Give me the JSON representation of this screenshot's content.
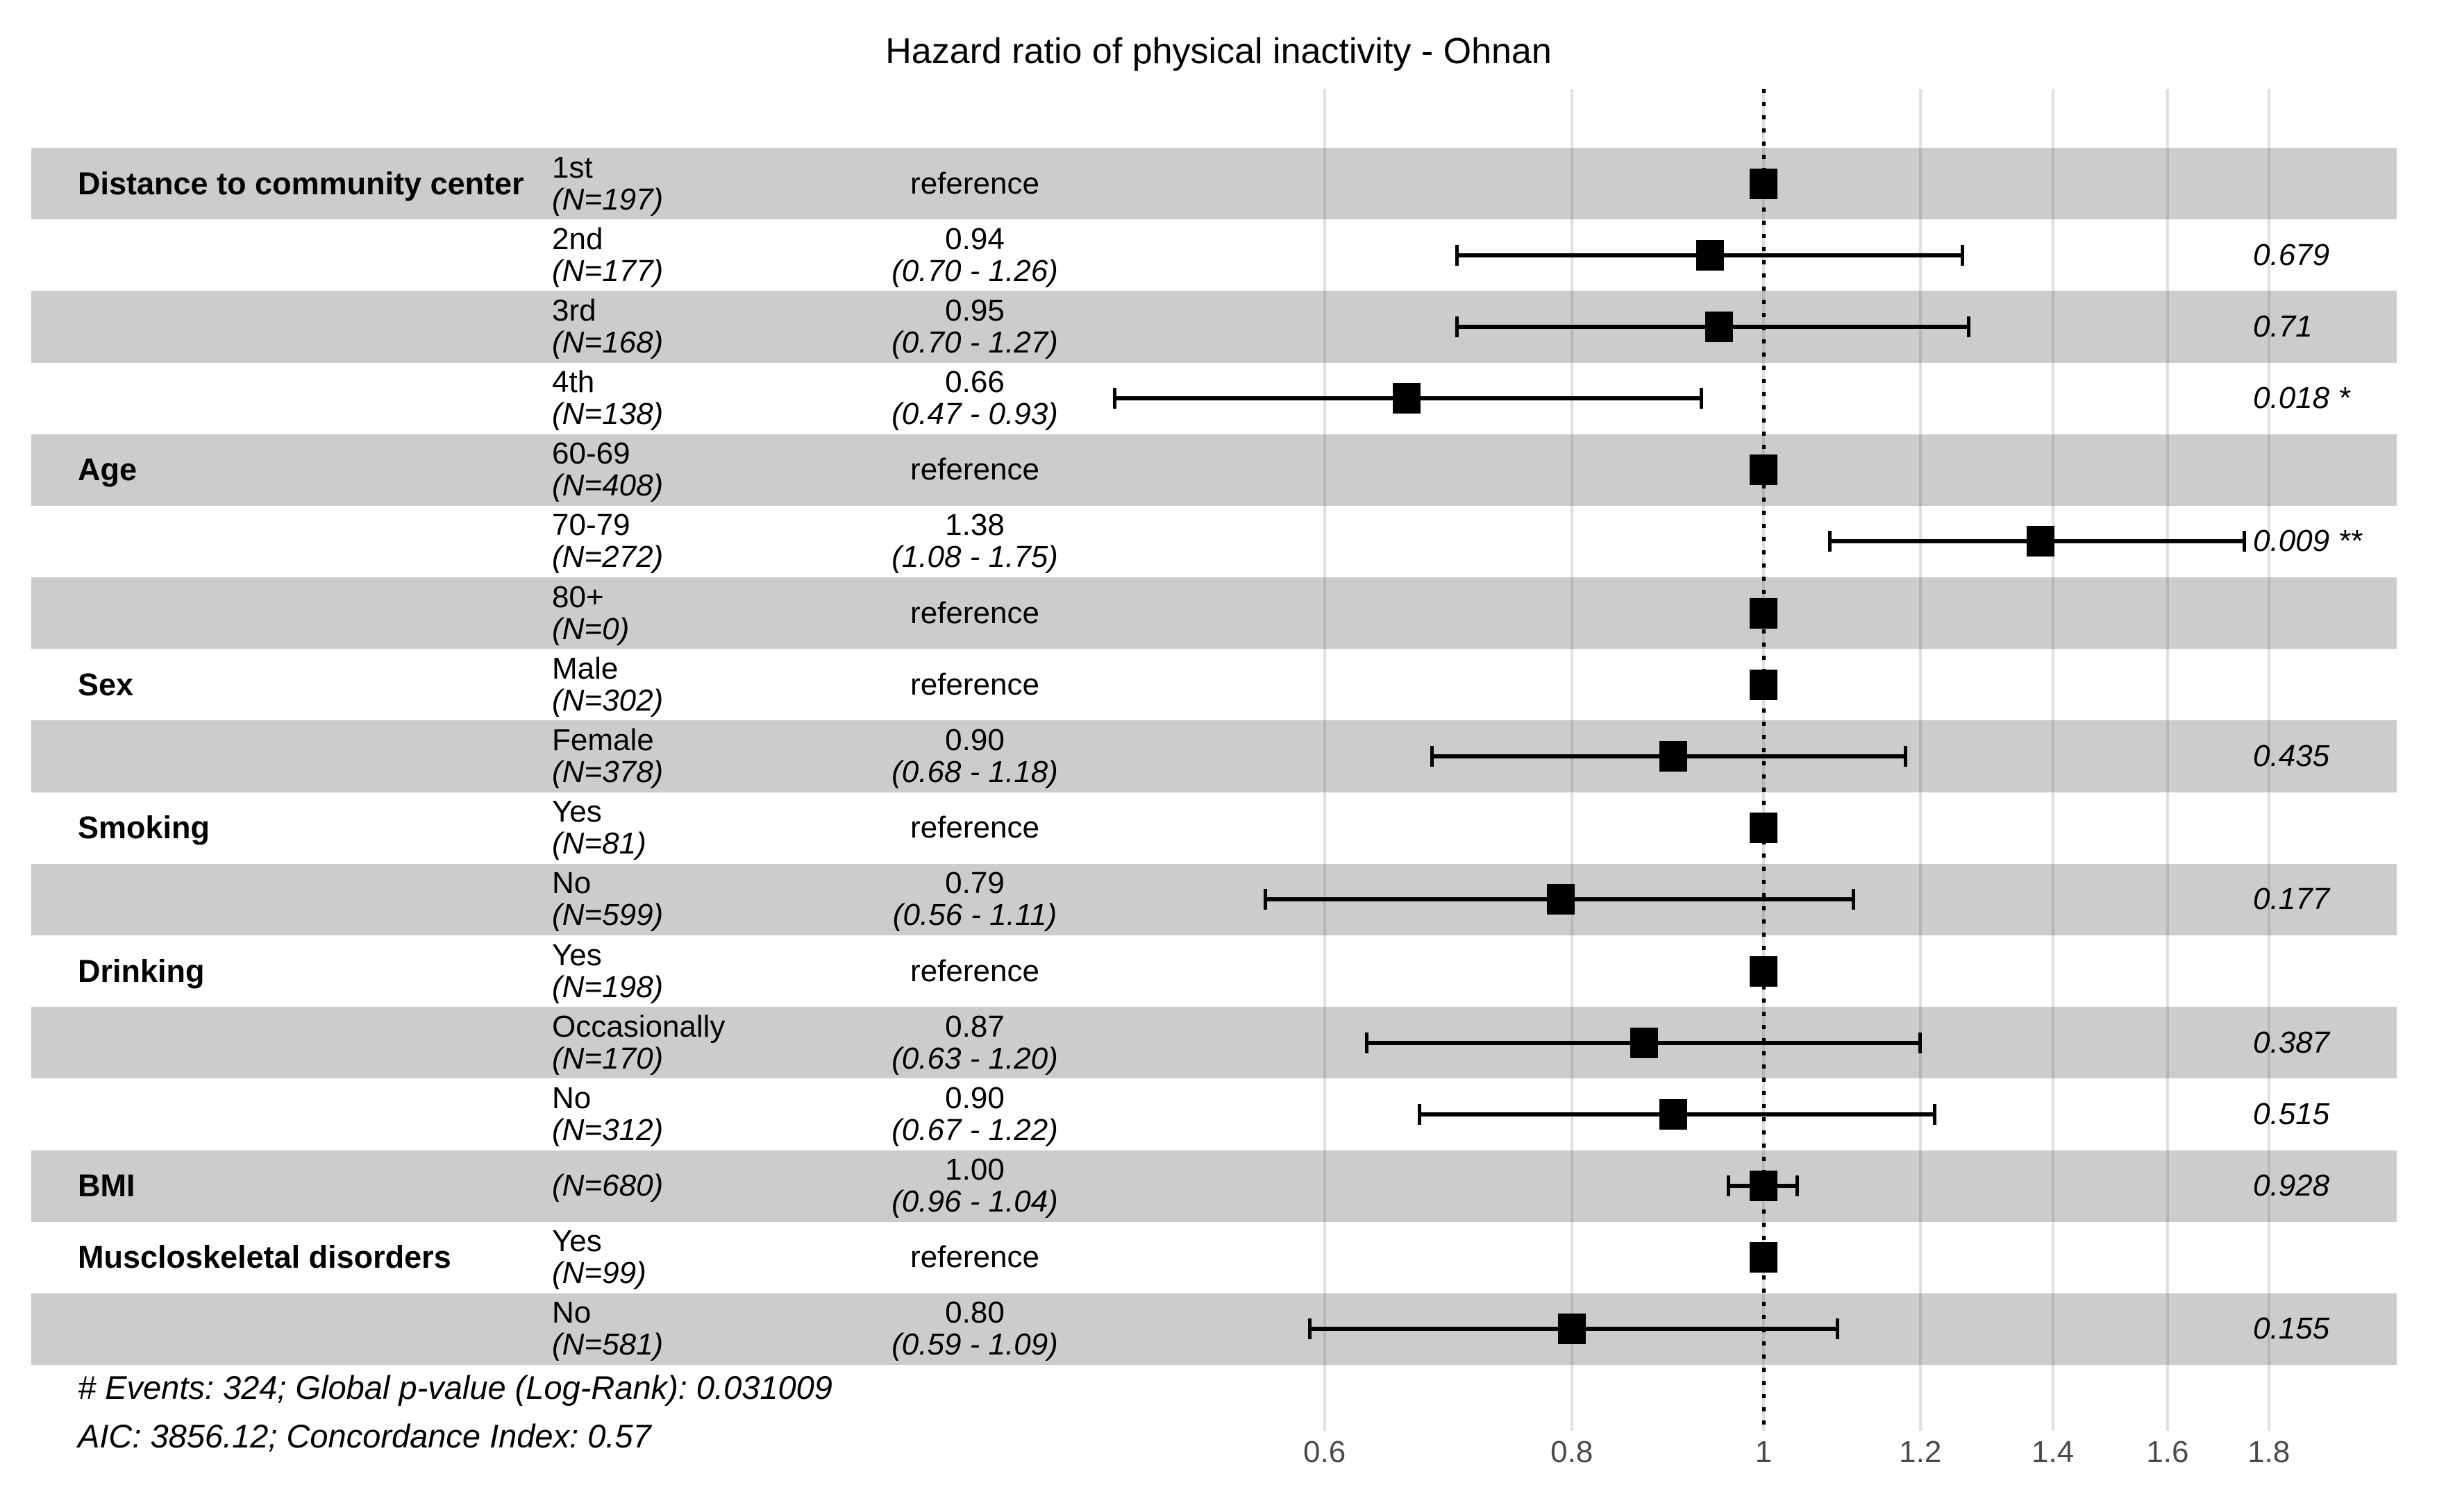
{
  "title": "Hazard ratio of physical inactivity - Ohnan",
  "footer": {
    "line1": "# Events: 324; Global p-value (Log-Rank): 0.031009",
    "line2": "AIC: 3856.12; Concordance Index: 0.57"
  },
  "colors": {
    "band": "#cccccc",
    "background": "#ffffff",
    "marker": "#000000",
    "reference_line": "#000000",
    "gridline": "#dedede",
    "tick_label": "#4a4a4a",
    "text": "#000000"
  },
  "chart_data": {
    "type": "forest",
    "title": "Hazard ratio of physical inactivity - Ohnan",
    "x_scale": "log",
    "xlim": [
      0.55,
      1.9
    ],
    "x_ticks": [
      0.6,
      0.8,
      1,
      1.2,
      1.4,
      1.6,
      1.8
    ],
    "x_tick_labels": [
      "0.6",
      "0.8",
      "1",
      "1.2",
      "1.4",
      "1.6",
      "1.8"
    ],
    "reference_value": 1,
    "grid": true,
    "rows": [
      {
        "variable": "Distance to community center",
        "level": "1st",
        "n": "(N=197)",
        "estimate": "reference",
        "reference": true,
        "hr": 1.0,
        "shaded": true
      },
      {
        "variable": "",
        "level": "2nd",
        "n": "(N=177)",
        "estimate": "0.94",
        "ci": "(0.70 - 1.26)",
        "hr": 0.94,
        "ci_low": 0.7,
        "ci_high": 1.26,
        "p": "0.679",
        "shaded": false
      },
      {
        "variable": "",
        "level": "3rd",
        "n": "(N=168)",
        "estimate": "0.95",
        "ci": "(0.70 - 1.27)",
        "hr": 0.95,
        "ci_low": 0.7,
        "ci_high": 1.27,
        "p": "0.71",
        "shaded": true
      },
      {
        "variable": "",
        "level": "4th",
        "n": "(N=138)",
        "estimate": "0.66",
        "ci": "(0.47 - 0.93)",
        "hr": 0.66,
        "ci_low": 0.47,
        "ci_high": 0.93,
        "p": "0.018 *",
        "shaded": false
      },
      {
        "variable": "Age",
        "level": "60-69",
        "n": "(N=408)",
        "estimate": "reference",
        "reference": true,
        "hr": 1.0,
        "shaded": true
      },
      {
        "variable": "",
        "level": "70-79",
        "n": "(N=272)",
        "estimate": "1.38",
        "ci": "(1.08 - 1.75)",
        "hr": 1.38,
        "ci_low": 1.08,
        "ci_high": 1.75,
        "p": "0.009 **",
        "shaded": false
      },
      {
        "variable": "",
        "level": "80+",
        "n": "(N=0)",
        "estimate": "reference",
        "reference": true,
        "hr": 1.0,
        "shaded": true
      },
      {
        "variable": "Sex",
        "level": "Male",
        "n": "(N=302)",
        "estimate": "reference",
        "reference": true,
        "hr": 1.0,
        "shaded": false
      },
      {
        "variable": "",
        "level": "Female",
        "n": "(N=378)",
        "estimate": "0.90",
        "ci": "(0.68 - 1.18)",
        "hr": 0.9,
        "ci_low": 0.68,
        "ci_high": 1.18,
        "p": "0.435",
        "shaded": true
      },
      {
        "variable": "Smoking",
        "level": "Yes",
        "n": "(N=81)",
        "estimate": "reference",
        "reference": true,
        "hr": 1.0,
        "shaded": false
      },
      {
        "variable": "",
        "level": "No",
        "n": "(N=599)",
        "estimate": "0.79",
        "ci": "(0.56 - 1.11)",
        "hr": 0.79,
        "ci_low": 0.56,
        "ci_high": 1.11,
        "p": "0.177",
        "shaded": true
      },
      {
        "variable": "Drinking",
        "level": "Yes",
        "n": "(N=198)",
        "estimate": "reference",
        "reference": true,
        "hr": 1.0,
        "shaded": false
      },
      {
        "variable": "",
        "level": "Occasionally",
        "n": "(N=170)",
        "estimate": "0.87",
        "ci": "(0.63 - 1.20)",
        "hr": 0.87,
        "ci_low": 0.63,
        "ci_high": 1.2,
        "p": "0.387",
        "shaded": true
      },
      {
        "variable": "",
        "level": "No",
        "n": "(N=312)",
        "estimate": "0.90",
        "ci": "(0.67 - 1.22)",
        "hr": 0.9,
        "ci_low": 0.67,
        "ci_high": 1.22,
        "p": "0.515",
        "shaded": false
      },
      {
        "variable": "BMI",
        "level": "",
        "n": "(N=680)",
        "estimate": "1.00",
        "ci": "(0.96 - 1.04)",
        "hr": 1.0,
        "ci_low": 0.96,
        "ci_high": 1.04,
        "p": "0.928",
        "shaded": true
      },
      {
        "variable": "Muscloskeletal disorders",
        "level": "Yes",
        "n": "(N=99)",
        "estimate": "reference",
        "reference": true,
        "hr": 1.0,
        "shaded": false
      },
      {
        "variable": "",
        "level": "No",
        "n": "(N=581)",
        "estimate": "0.80",
        "ci": "(0.59 - 1.09)",
        "hr": 0.8,
        "ci_low": 0.59,
        "ci_high": 1.09,
        "p": "0.155",
        "shaded": true
      }
    ]
  }
}
